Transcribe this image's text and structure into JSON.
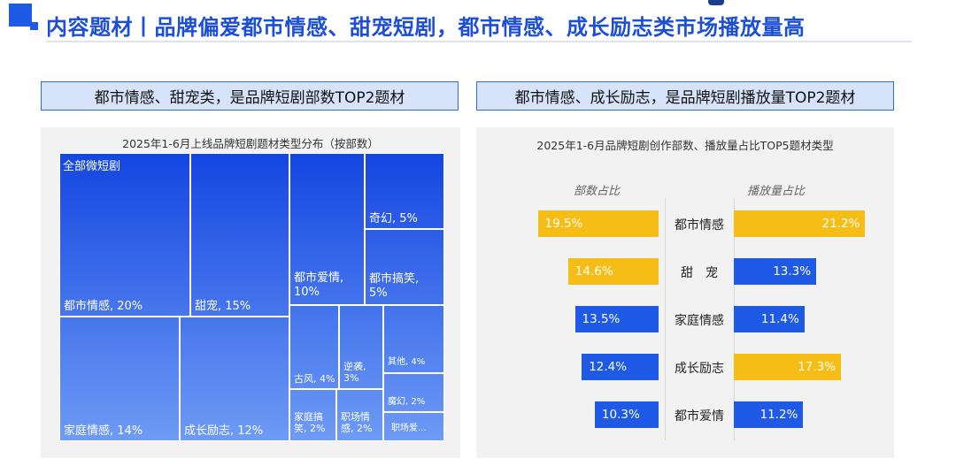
{
  "header": {
    "title": "内容题材丨品牌偏爱都市情感、甜宠短剧，都市情感、成长励志类市场播放量高"
  },
  "left": {
    "subtitle": "都市情感、甜宠类，是品牌短剧部数TOP2题材"
  },
  "right": {
    "subtitle": "都市情感、成长励志，是品牌短剧播放量TOP2题材"
  },
  "colors": {
    "accent": "#1e5ae6",
    "yellow": "#f6bd16",
    "blue": "#1e5ae6"
  },
  "chart_data": [
    {
      "type": "treemap",
      "title": "2025年1-6月上线品牌短剧题材类型分布（按部数）",
      "root_label": "全部微短剧",
      "items": [
        {
          "label": "都市情感, 20%",
          "name": "都市情感",
          "value": 20
        },
        {
          "label": "甜宠, 15%",
          "name": "甜宠",
          "value": 15
        },
        {
          "label": "家庭情感, 14%",
          "name": "家庭情感",
          "value": 14
        },
        {
          "label": "成长励志, 12%",
          "name": "成长励志",
          "value": 12
        },
        {
          "label": "都市爱情, 10%",
          "name": "都市爱情",
          "value": 10
        },
        {
          "label": "奇幻, 5%",
          "name": "奇幻",
          "value": 5
        },
        {
          "label": "都市搞笑, 5%",
          "name": "都市搞笑",
          "value": 5
        },
        {
          "label": "古风, 4%",
          "name": "古风",
          "value": 4
        },
        {
          "label": "逆袭, 3%",
          "name": "逆袭",
          "value": 3
        },
        {
          "label": "其他, 4%",
          "name": "其他",
          "value": 4
        },
        {
          "label": "魔幻, 2%",
          "name": "魔幻",
          "value": 2
        },
        {
          "label": "家庭搞笑, 2%",
          "name": "家庭搞笑",
          "value": 2
        },
        {
          "label": "职场情感, 2%",
          "name": "职场情感",
          "value": 2
        },
        {
          "label": "职场爱...",
          "name": "职场爱...",
          "value": 2
        }
      ]
    },
    {
      "type": "bar",
      "orientation": "horizontal-butterfly",
      "title": "2025年1-6月品牌短剧创作部数、播放量占比TOP5题材类型",
      "categories": [
        "都市情感",
        "甜　宠",
        "家庭情感",
        "成长励志",
        "都市爱情"
      ],
      "series": [
        {
          "name": "部数占比",
          "values": [
            19.5,
            14.6,
            13.5,
            12.4,
            10.3
          ],
          "labels": [
            "19.5%",
            "14.6%",
            "13.5%",
            "12.4%",
            "10.3%"
          ],
          "colors": [
            "yellow",
            "yellow",
            "blue",
            "blue",
            "blue"
          ]
        },
        {
          "name": "播放量占比",
          "values": [
            21.2,
            13.3,
            11.4,
            17.3,
            11.2
          ],
          "labels": [
            "21.2%",
            "13.3%",
            "11.4%",
            "17.3%",
            "11.2%"
          ],
          "colors": [
            "yellow",
            "blue",
            "blue",
            "yellow",
            "blue"
          ]
        }
      ]
    }
  ]
}
